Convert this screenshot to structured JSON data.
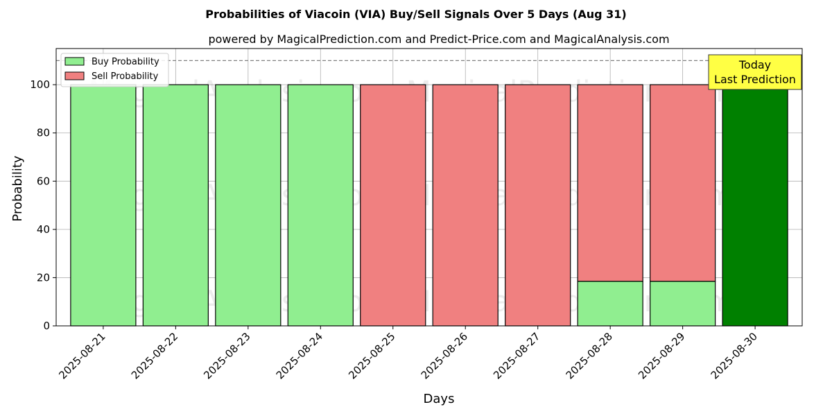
{
  "chart_data": {
    "type": "bar",
    "title": "Probabilities of Viacoin (VIA) Buy/Sell Signals Over 5 Days (Aug 31)",
    "subtitle": "powered by MagicalPrediction.com and Predict-Price.com and MagicalAnalysis.com",
    "xlabel": "Days",
    "ylabel": "Probability",
    "ylim": [
      0,
      115
    ],
    "yticks": [
      "0",
      "20",
      "40",
      "60",
      "80",
      "100"
    ],
    "categories": [
      "2025-08-21",
      "2025-08-22",
      "2025-08-23",
      "2025-08-24",
      "2025-08-25",
      "2025-08-26",
      "2025-08-27",
      "2025-08-28",
      "2025-08-29",
      "2025-08-30"
    ],
    "stacked": true,
    "series": [
      {
        "name": "Buy Probability",
        "color": "#90ee90",
        "values": [
          100,
          100,
          100,
          100,
          0,
          0,
          0,
          18.5,
          18.5,
          100
        ]
      },
      {
        "name": "Sell Probability",
        "color": "#f08080",
        "values": [
          0,
          0,
          0,
          0,
          100,
          100,
          100,
          81.5,
          81.5,
          0
        ]
      }
    ],
    "highlight": {
      "index": 9,
      "color": "#008000"
    },
    "reference_line": {
      "y": 110,
      "style": "dashed"
    },
    "annotation": {
      "lines": [
        "Today",
        "Last Prediction"
      ],
      "color": "#ffff44"
    },
    "legend_position": "top-left",
    "grid": true,
    "watermarks": [
      "MagicalAnalysis.com",
      "MagicalPrediction.com"
    ]
  }
}
